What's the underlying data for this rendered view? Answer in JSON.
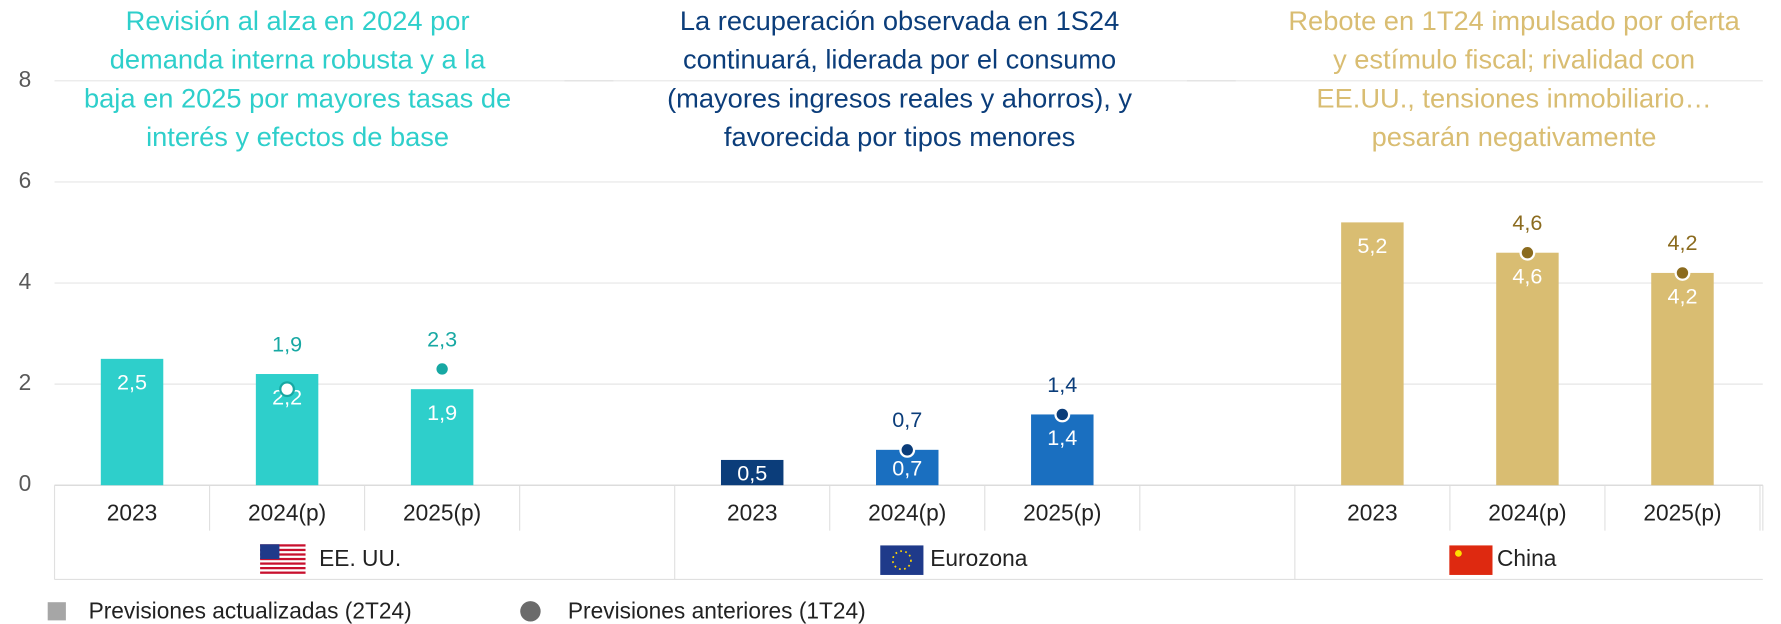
{
  "chart_data": {
    "type": "bar",
    "ylim": [
      0,
      8
    ],
    "yticks": [
      0,
      2,
      4,
      6,
      8
    ],
    "grid": true,
    "legend": {
      "bars": "Previsiones actualizadas (2T24)",
      "dots": "Previsiones anteriores (1T24)"
    },
    "groups": [
      {
        "name": "EE. UU.",
        "annotation": [
          "Revisión al alza en 2024 por",
          "demanda interna robusta y a la",
          "baja en 2025 por mayores tasas de",
          "interés y efectos de base"
        ],
        "annotation_color": "#2ecfcb",
        "categories": [
          "2023",
          "2024(p)",
          "2025(p)"
        ],
        "colors": [
          "#2ecfcb",
          "#2ecfcb",
          "#2ecfcb"
        ],
        "values": [
          2.5,
          2.2,
          1.9
        ],
        "value_labels": [
          "2,5",
          "2,2",
          "1,9"
        ],
        "previous": [
          null,
          1.9,
          2.3
        ],
        "previous_labels": [
          null,
          "1,9",
          "2,3"
        ],
        "dot_color": "#17a8a3"
      },
      {
        "name": "Eurozona",
        "annotation": [
          "La recuperación observada en 1S24",
          "continuará, liderada por el consumo",
          "(mayores ingresos reales y ahorros), y",
          "favorecida por tipos menores"
        ],
        "annotation_color": "#0b3d7a",
        "categories": [
          "2023",
          "2024(p)",
          "2025(p)"
        ],
        "colors": [
          "#0b3d7a",
          "#1a6fc0",
          "#1a6fc0"
        ],
        "values": [
          0.5,
          0.7,
          1.4
        ],
        "value_labels": [
          "0,5",
          "0,7",
          "1,4"
        ],
        "previous": [
          null,
          0.7,
          1.4
        ],
        "previous_labels": [
          null,
          "0,7",
          "1,4"
        ],
        "dot_color": "#0b3d7a"
      },
      {
        "name": "China",
        "annotation": [
          "Rebote en 1T24 impulsado por oferta",
          "y estímulo fiscal; rivalidad con",
          "EE.UU., tensiones inmobiliario…",
          "pesarán negativamente"
        ],
        "annotation_color": "#d9bd72",
        "categories": [
          "2023",
          "2024(p)",
          "2025(p)"
        ],
        "colors": [
          "#d9bd72",
          "#d9bd72",
          "#d9bd72"
        ],
        "values": [
          5.2,
          4.6,
          4.2
        ],
        "value_labels": [
          "5,2",
          "4,6",
          "4,2"
        ],
        "previous": [
          null,
          4.6,
          4.2
        ],
        "previous_labels": [
          null,
          "4,6",
          "4,2"
        ],
        "dot_color": "#8b6b1e"
      }
    ]
  }
}
